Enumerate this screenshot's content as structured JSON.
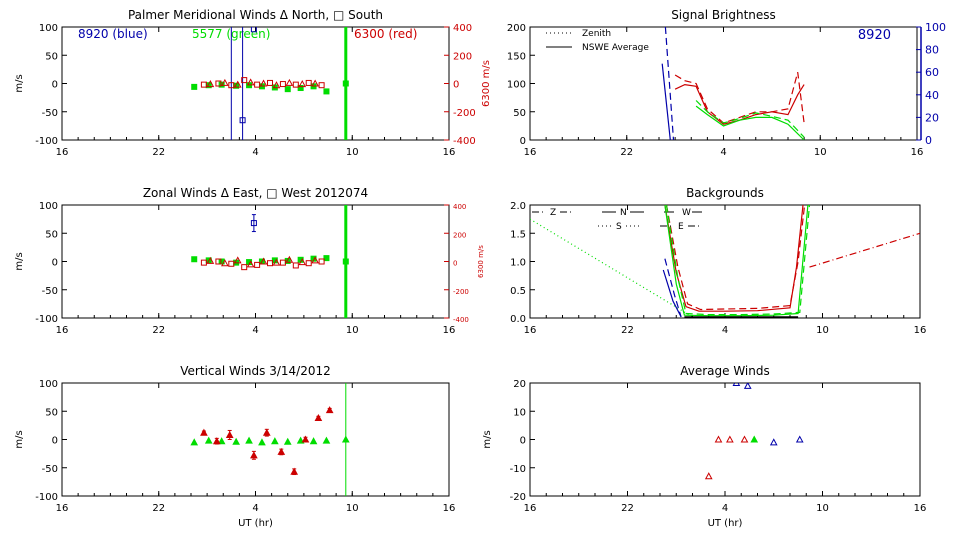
{
  "colors": {
    "blue": "#0000aa",
    "green": "#00dd00",
    "red": "#cc0000",
    "black": "#000000"
  },
  "chart_data": [
    {
      "id": "meridional",
      "type": "scatter",
      "title": "Palmer Meridional Winds Δ North, □ South",
      "xlabel": "",
      "ylabel": "m/s",
      "ylabel_right": "6300 m/s",
      "x_ticks": [
        "16",
        "22",
        "4",
        "10",
        "16"
      ],
      "xlim": [
        16,
        40
      ],
      "ylim": [
        -100,
        100
      ],
      "y_ticks": [
        "100",
        "50",
        "0",
        "-50",
        "-100"
      ],
      "y2_ticks": [
        "400",
        "200",
        "0",
        "-200",
        "-400"
      ],
      "annotations": [
        {
          "text": "8920 (blue)",
          "color": "blue"
        },
        {
          "text": "5577 (green)",
          "color": "green"
        },
        {
          "text": "6300 (red)",
          "color": "red"
        }
      ],
      "vlines": [
        {
          "x": 26.5,
          "y1": -100,
          "y2": 100,
          "color": "blue",
          "width": 1
        },
        {
          "x": 27.2,
          "y1": -100,
          "y2": 100,
          "color": "blue",
          "width": 1
        },
        {
          "x": 33.6,
          "y1": -100,
          "y2": 100,
          "color": "green",
          "width": 3
        }
      ],
      "series": [
        {
          "color": "green",
          "marker": "square",
          "x": [
            24.2,
            25.1,
            25.9,
            26.8,
            27.6,
            28.4,
            29.2,
            30.0,
            30.8,
            31.6,
            32.4,
            33.6
          ],
          "y": [
            -6,
            -3,
            -2,
            -4,
            -3,
            -5,
            -7,
            -10,
            -8,
            -5,
            -14,
            0
          ]
        },
        {
          "color": "red",
          "marker": "square",
          "x": [
            24.8,
            25.7,
            26.5,
            27.3,
            28.1,
            28.9,
            29.7,
            30.5,
            31.3,
            32.1
          ],
          "y": [
            -2,
            0,
            -3,
            6,
            -2,
            1,
            -1,
            -2,
            1,
            -3
          ]
        },
        {
          "color": "red",
          "marker": "triangle",
          "x": [
            25.2,
            26.1,
            26.9,
            27.7,
            28.5,
            29.3,
            30.1,
            30.9,
            31.7
          ],
          "y": [
            -1,
            1,
            -2,
            2,
            0,
            -3,
            1,
            -1,
            0
          ]
        },
        {
          "color": "blue",
          "marker": "square",
          "x": [
            27.2,
            27.9
          ],
          "y": [
            -65,
            96
          ]
        }
      ]
    },
    {
      "id": "brightness",
      "type": "line",
      "title": "Signal Brightness",
      "xlabel": "",
      "ylabel": "",
      "x_ticks": [
        "16",
        "22",
        "4",
        "10",
        "16"
      ],
      "xlim": [
        16,
        40
      ],
      "ylim": [
        0,
        200
      ],
      "y_ticks": [
        "200",
        "150",
        "100",
        "50",
        "0"
      ],
      "y2_ticks": [
        "100",
        "80",
        "60",
        "40",
        "20",
        "0"
      ],
      "station_label": "8920",
      "legend": [
        {
          "label": "Zenith",
          "style": "dotted"
        },
        {
          "label": "NSWE Average",
          "style": "solid"
        }
      ],
      "series": [
        {
          "color": "blue",
          "style": "solid",
          "x": [
            24.2,
            24.7
          ],
          "y": [
            135,
            0
          ]
        },
        {
          "color": "blue",
          "style": "dashed",
          "x": [
            24.4,
            24.9
          ],
          "y": [
            200,
            0
          ]
        },
        {
          "color": "red",
          "style": "solid",
          "x": [
            25.0,
            25.6,
            26.3,
            27.0,
            28.0,
            29.0,
            30.0,
            31.0,
            32.0,
            32.6,
            33.0
          ],
          "y": [
            90,
            98,
            95,
            50,
            28,
            35,
            45,
            50,
            45,
            80,
            98
          ]
        },
        {
          "color": "red",
          "style": "dashed",
          "x": [
            25.0,
            25.6,
            26.3,
            27.0,
            28.0,
            29.0,
            30.0,
            31.0,
            32.0,
            32.6,
            33.0
          ],
          "y": [
            115,
            105,
            100,
            55,
            30,
            40,
            50,
            50,
            55,
            120,
            30
          ]
        },
        {
          "color": "green",
          "style": "solid",
          "x": [
            26.3,
            27.0,
            28.0,
            29.0,
            30.0,
            31.0,
            32.0,
            33.0
          ],
          "y": [
            60,
            45,
            25,
            35,
            40,
            40,
            28,
            0
          ]
        },
        {
          "color": "green",
          "style": "dashed",
          "x": [
            26.3,
            27.0,
            28.0,
            29.0,
            30.0,
            31.0,
            32.0,
            33.0
          ],
          "y": [
            70,
            50,
            30,
            38,
            48,
            42,
            35,
            5
          ]
        }
      ]
    },
    {
      "id": "zonal",
      "type": "scatter",
      "title": "Zonal Winds Δ East, □ West 2012074",
      "xlabel": "",
      "ylabel": "m/s",
      "ylabel_right": "6300 m/s",
      "x_ticks": [
        "16",
        "22",
        "4",
        "10",
        "16"
      ],
      "xlim": [
        16,
        40
      ],
      "ylim": [
        -100,
        100
      ],
      "y_ticks": [
        "100",
        "50",
        "0",
        "-50",
        "-100"
      ],
      "y2_ticks": [
        "400",
        "200",
        "0",
        "-200",
        "-400"
      ],
      "vlines": [
        {
          "x": 33.6,
          "y1": -100,
          "y2": 100,
          "color": "green",
          "width": 3
        }
      ],
      "series": [
        {
          "color": "green",
          "marker": "square",
          "x": [
            24.2,
            25.1,
            25.9,
            26.8,
            27.6,
            28.4,
            29.2,
            30.0,
            30.8,
            31.6,
            32.4,
            33.6
          ],
          "y": [
            4,
            2,
            0,
            -2,
            -1,
            0,
            2,
            1,
            3,
            5,
            6,
            0
          ]
        },
        {
          "color": "red",
          "marker": "square",
          "x": [
            24.8,
            25.7,
            26.5,
            27.3,
            28.1,
            28.9,
            29.7,
            30.5,
            31.3,
            32.1
          ],
          "y": [
            -2,
            0,
            -4,
            -10,
            -6,
            -3,
            -2,
            -7,
            -3,
            0
          ]
        },
        {
          "color": "red",
          "marker": "triangle",
          "x": [
            25.2,
            26.1,
            26.9,
            27.7,
            28.5,
            29.3,
            30.1,
            30.9,
            31.7
          ],
          "y": [
            1,
            -3,
            2,
            -5,
            0,
            -2,
            3,
            -1,
            2
          ]
        },
        {
          "color": "blue",
          "marker": "square",
          "x": [
            27.9
          ],
          "y": [
            68
          ],
          "err": [
            15
          ]
        }
      ]
    },
    {
      "id": "backgrounds",
      "type": "line",
      "title": "Backgrounds",
      "xlabel": "",
      "ylabel": "",
      "x_ticks": [
        "16",
        "22",
        "4",
        "10",
        "16"
      ],
      "xlim": [
        16,
        40
      ],
      "ylim": [
        0,
        2.0
      ],
      "y_ticks": [
        "2.0",
        "1.5",
        "1.0",
        "0.5",
        "0.0"
      ],
      "legend": [
        {
          "label": "Z",
          "style": "dashdot"
        },
        {
          "label": "N",
          "style": "solid"
        },
        {
          "label": "W",
          "style": "longdash"
        },
        {
          "label": "S",
          "style": "dotted"
        },
        {
          "label": "E",
          "style": "dashdotdot"
        }
      ],
      "series": [
        {
          "color": "green",
          "style": "dotted",
          "x": [
            16,
            26
          ],
          "y": [
            1.75,
            0.02
          ]
        },
        {
          "color": "red",
          "style": "dashdot",
          "x": [
            33.2,
            40
          ],
          "y": [
            0.9,
            1.5
          ]
        },
        {
          "color": "blue",
          "style": "solid",
          "x": [
            24.2,
            24.8,
            25.3
          ],
          "y": [
            0.85,
            0.3,
            0.02
          ]
        },
        {
          "color": "blue",
          "style": "dashed",
          "x": [
            24.3,
            24.9,
            25.3
          ],
          "y": [
            1.05,
            0.4,
            0.02
          ]
        },
        {
          "color": "red",
          "style": "solid",
          "x": [
            24.3,
            25.0,
            25.6,
            26.4,
            28,
            30,
            32,
            32.4,
            32.8
          ],
          "y": [
            2.0,
            0.8,
            0.2,
            0.12,
            0.12,
            0.13,
            0.18,
            0.9,
            2.0
          ]
        },
        {
          "color": "red",
          "style": "dashed",
          "x": [
            24.4,
            25.1,
            25.7,
            26.5,
            28,
            30,
            32,
            32.5,
            32.9
          ],
          "y": [
            2.0,
            0.9,
            0.25,
            0.15,
            0.16,
            0.17,
            0.22,
            1.0,
            2.0
          ]
        },
        {
          "color": "green",
          "style": "solid",
          "x": [
            24.3,
            25.0,
            25.5,
            27,
            29,
            31,
            32.5,
            33.1
          ],
          "y": [
            2.0,
            0.6,
            0.05,
            0.04,
            0.04,
            0.05,
            0.08,
            2.0
          ]
        },
        {
          "color": "green",
          "style": "dashed",
          "x": [
            24.4,
            25.1,
            25.6,
            27,
            29,
            31,
            32.6,
            33.2
          ],
          "y": [
            2.0,
            0.7,
            0.08,
            0.06,
            0.06,
            0.07,
            0.1,
            2.0
          ]
        },
        {
          "color": "black",
          "style": "solid",
          "x": [
            25.5,
            27,
            29,
            31,
            32.5
          ],
          "y": [
            0.02,
            0.02,
            0.02,
            0.02,
            0.02
          ]
        }
      ]
    },
    {
      "id": "vertical",
      "type": "scatter",
      "title": "Vertical Winds 3/14/2012",
      "xlabel": "UT (hr)",
      "ylabel": "m/s",
      "x_ticks": [
        "16",
        "22",
        "4",
        "10",
        "16"
      ],
      "xlim": [
        16,
        40
      ],
      "ylim": [
        -100,
        100
      ],
      "y_ticks": [
        "100",
        "50",
        "0",
        "-50",
        "-100"
      ],
      "vlines": [
        {
          "x": 33.6,
          "y1": -100,
          "y2": 100,
          "color": "green",
          "width": 1
        }
      ],
      "series": [
        {
          "color": "green",
          "marker": "triangle",
          "x": [
            24.2,
            25.1,
            25.9,
            26.8,
            27.6,
            28.4,
            29.2,
            30.0,
            30.8,
            31.6,
            32.4,
            33.6
          ],
          "y": [
            -5,
            -2,
            -3,
            -4,
            -2,
            -5,
            -3,
            -4,
            -2,
            -3,
            -2,
            0
          ]
        },
        {
          "color": "red",
          "marker": "triangle",
          "x": [
            24.8,
            25.6,
            26.4,
            27.9,
            28.7,
            29.6,
            30.4,
            31.1,
            31.9,
            32.6
          ],
          "y": [
            12,
            -3,
            8,
            -28,
            12,
            -22,
            -57,
            0,
            38,
            52
          ],
          "err": [
            3,
            5,
            8,
            7,
            6,
            5,
            5,
            4,
            3,
            3
          ]
        }
      ]
    },
    {
      "id": "average",
      "type": "scatter",
      "title": "Average Winds",
      "xlabel": "UT (hr)",
      "ylabel": "m/s",
      "x_ticks": [
        "16",
        "22",
        "4",
        "10",
        "16"
      ],
      "xlim": [
        16,
        40
      ],
      "ylim": [
        -20,
        20
      ],
      "y_ticks": [
        "20",
        "10",
        "0",
        "-10",
        "-20"
      ],
      "series": [
        {
          "color": "red",
          "marker": "triangle",
          "x": [
            27.0,
            27.6,
            28.3,
            29.2
          ],
          "y": [
            -13,
            0,
            0,
            0
          ]
        },
        {
          "color": "green",
          "marker": "triangle",
          "x": [
            29.8
          ],
          "y": [
            0
          ]
        },
        {
          "color": "blue",
          "marker": "triangle",
          "x": [
            28.7,
            29.4,
            31.0,
            32.6
          ],
          "y": [
            20,
            19,
            -1,
            0
          ]
        }
      ]
    }
  ]
}
